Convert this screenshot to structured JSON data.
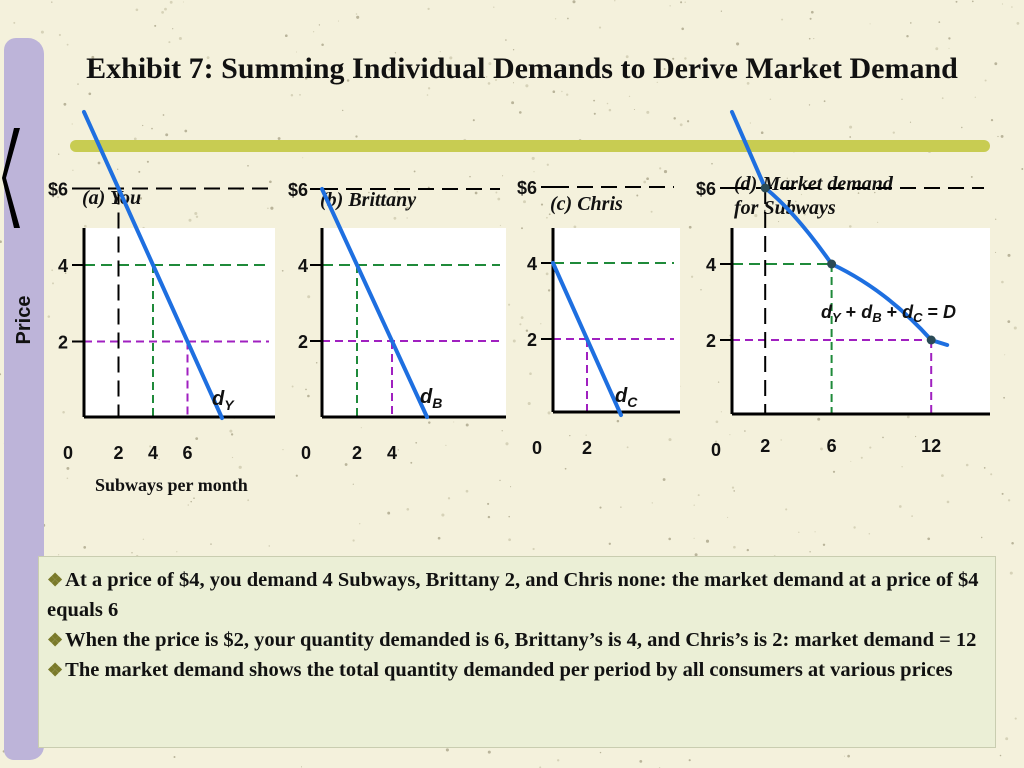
{
  "title": "Exhibit 7: Summing Individual Demands to Derive Market Demand",
  "y_axis_label": "Price",
  "x_axis_label": "Subways per month",
  "panels": [
    {
      "label": "(a) You"
    },
    {
      "label": "(b) Brittany"
    },
    {
      "label": "(c) Chris"
    },
    {
      "label_line1": "(d) Market demand",
      "label_line2": "for Subways"
    }
  ],
  "notes": [
    "At a price of $4, you demand 4 Subways, Brittany 2, and Chris none: the market demand at a price of $4 equals 6",
    "When the price is $2, your quantity demanded is 6, Brittany’s is 4, and Chris’s is 2: market demand = 12",
    "The market demand shows the total quantity demanded per period by all consumers at various prices"
  ],
  "colors": {
    "background": "#f4f1dc",
    "demand_line": "#1e6fe0",
    "guide_price6": "#000000",
    "guide_price4": "#1f8a3a",
    "guide_price2": "#a020c0",
    "sidebar": "#bdb4d9",
    "title_rule": "#c8cc52"
  },
  "chart_data": [
    {
      "type": "line",
      "panel": "a",
      "title": "(a) You",
      "ylabel": "Price",
      "xlabel": "Subways per month",
      "y_ticks": [
        "$6",
        "4",
        "2"
      ],
      "y_tick_values": [
        6,
        4,
        2
      ],
      "x_ticks": [
        "2",
        "4",
        "6"
      ],
      "x_tick_values": [
        2,
        4,
        6
      ],
      "origin_label": "0",
      "series": [
        {
          "name": "dY",
          "points": [
            [
              0,
              8
            ],
            [
              2,
              6
            ],
            [
              4,
              4
            ],
            [
              6,
              2
            ],
            [
              8,
              0
            ]
          ]
        }
      ],
      "curve_label": {
        "main": "d",
        "sub": "Y"
      }
    },
    {
      "type": "line",
      "panel": "b",
      "title": "(b) Brittany",
      "y_ticks": [
        "$6",
        "4",
        "2"
      ],
      "y_tick_values": [
        6,
        4,
        2
      ],
      "x_ticks": [
        "2",
        "4"
      ],
      "x_tick_values": [
        2,
        4
      ],
      "origin_label": "0",
      "series": [
        {
          "name": "dB",
          "points": [
            [
              0,
              6
            ],
            [
              2,
              4
            ],
            [
              4,
              2
            ],
            [
              6,
              0
            ]
          ]
        }
      ],
      "curve_label": {
        "main": "d",
        "sub": "B"
      }
    },
    {
      "type": "line",
      "panel": "c",
      "title": "(c) Chris",
      "y_ticks": [
        "$6",
        "4",
        "2"
      ],
      "y_tick_values": [
        6,
        4,
        2
      ],
      "x_ticks": [
        "2"
      ],
      "x_tick_values": [
        2
      ],
      "origin_label": "0",
      "series": [
        {
          "name": "dC",
          "points": [
            [
              0,
              4
            ],
            [
              2,
              2
            ],
            [
              4,
              0
            ]
          ]
        }
      ],
      "curve_label": {
        "main": "d",
        "sub": "C"
      }
    },
    {
      "type": "line",
      "panel": "d",
      "title": "(d) Market demand for Subways",
      "y_ticks": [
        "$6",
        "4",
        "2"
      ],
      "y_tick_values": [
        6,
        4,
        2
      ],
      "x_ticks": [
        "2",
        "6",
        "12"
      ],
      "x_tick_values": [
        2,
        6,
        12
      ],
      "origin_label": "0",
      "series": [
        {
          "name": "D",
          "points": [
            [
              0,
              8
            ],
            [
              2,
              6
            ],
            [
              6,
              4
            ],
            [
              12,
              2
            ]
          ]
        }
      ],
      "market_points": [
        [
          2,
          6
        ],
        [
          6,
          4
        ],
        [
          12,
          2
        ]
      ],
      "equation": "dY + dB + dC = D"
    }
  ]
}
